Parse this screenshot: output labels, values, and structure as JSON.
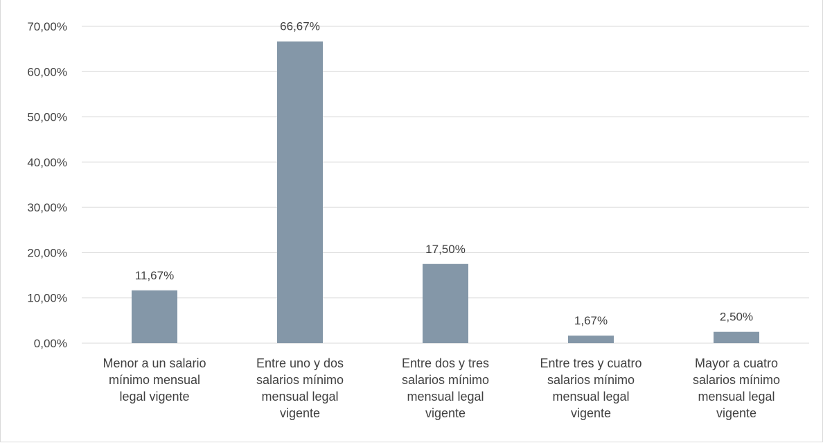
{
  "chart_data": {
    "type": "bar",
    "title": "",
    "xlabel": "",
    "ylabel": "",
    "ylim": [
      0,
      70
    ],
    "ytick_step": 10,
    "grid": true,
    "bar_color": "#8497a8",
    "grid_color": "#d9d9d9",
    "text_color": "#404040",
    "categories": [
      [
        "Menor a un salario",
        "mínimo mensual",
        "legal vigente"
      ],
      [
        "Entre uno y dos",
        "salarios mínimo",
        "mensual legal",
        "vigente"
      ],
      [
        "Entre dos y tres",
        "salarios mínimo",
        "mensual legal",
        "vigente"
      ],
      [
        "Entre tres y cuatro",
        "salarios mínimo",
        "mensual legal",
        "vigente"
      ],
      [
        "Mayor a cuatro",
        "salarios mínimo",
        "mensual legal",
        "vigente"
      ]
    ],
    "values": [
      11.67,
      66.67,
      17.5,
      1.67,
      2.5
    ],
    "data_labels": [
      "11,67%",
      "66,67%",
      "17,50%",
      "1,67%",
      "2,50%"
    ],
    "yticks": [
      "0,00%",
      "10,00%",
      "20,00%",
      "30,00%",
      "40,00%",
      "50,00%",
      "60,00%",
      "70,00%"
    ]
  }
}
